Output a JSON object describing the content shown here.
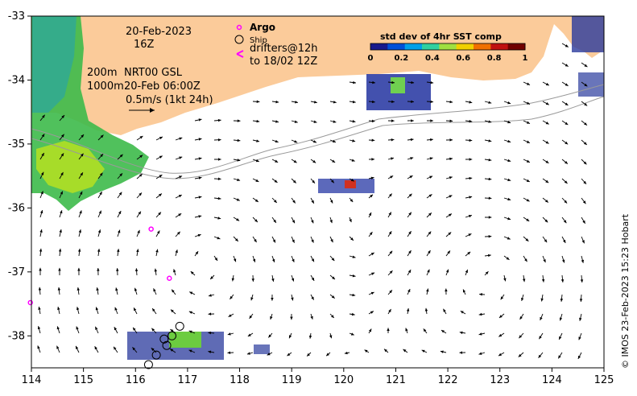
{
  "map": {
    "date": "20-Feb-2023",
    "time": "16Z",
    "depth_line1": "200m",
    "depth_line2": "1000m",
    "product_line1": "NRT00 GSL",
    "product_line2": "20-Feb 06:00Z",
    "scale_label": "0.5m/s (1kt 24h)",
    "x_ticks": [
      "114",
      "115",
      "116",
      "117",
      "118",
      "119",
      "120",
      "121",
      "122",
      "123",
      "124",
      "125"
    ],
    "y_ticks": [
      "-33",
      "-34",
      "-35",
      "-36",
      "-37",
      "-38"
    ],
    "credit": "© IMOS 23-Feb-2023 15:23 Hobart"
  },
  "legend": {
    "argo": "Argo",
    "ship": "Ship",
    "drifters_line1": "drifters@12h",
    "drifters_line2": "to 18/02 12Z"
  },
  "colorbar": {
    "title": "std dev of 4hr SST comp",
    "ticks": [
      "0",
      "0.2",
      "0.4",
      "0.6",
      "0.8",
      "1"
    ],
    "colors": [
      "#1a1a8c",
      "#0050d8",
      "#00a0e8",
      "#30d0a0",
      "#a0e040",
      "#f0d000",
      "#f07000",
      "#c01010",
      "#700000"
    ]
  },
  "colors": {
    "land": "#fbcb9a",
    "coast_sst_green": "#3dba4a",
    "argo": "#ff00ff",
    "ship": "#000000"
  },
  "markers": {
    "argo": [
      {
        "lon": 116.3,
        "lat": -36.33
      },
      {
        "lon": 116.65,
        "lat": -37.1
      },
      {
        "lon": 113.98,
        "lat": -37.48
      }
    ],
    "ship": [
      {
        "lon": 116.25,
        "lat": -38.45
      },
      {
        "lon": 116.4,
        "lat": -38.3
      },
      {
        "lon": 116.6,
        "lat": -38.15
      },
      {
        "lon": 116.7,
        "lat": -38.0
      },
      {
        "lon": 116.85,
        "lat": -37.85
      },
      {
        "lon": 116.55,
        "lat": -38.05
      }
    ]
  }
}
